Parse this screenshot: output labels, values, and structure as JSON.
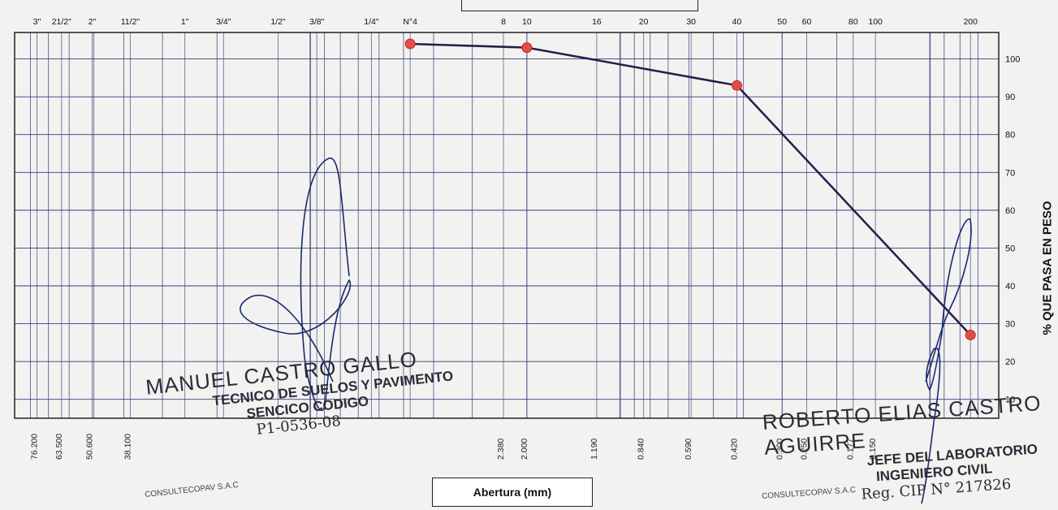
{
  "chart_data": {
    "type": "line",
    "x_scale": "log",
    "x_reversed": true,
    "xlim": [
      0.06,
      90
    ],
    "ylim": [
      5,
      107
    ],
    "grid": true,
    "series_color": "#2a1a4a",
    "marker_color": "#e84a4a",
    "sieve_labels": [
      {
        "label": "3\"",
        "mm": 76.2
      },
      {
        "label": "21/2\"",
        "mm": 63.5
      },
      {
        "label": "2\"",
        "mm": 50.6
      },
      {
        "label": "11/2\"",
        "mm": 38.1
      },
      {
        "label": "1\"",
        "mm": 25.4
      },
      {
        "label": "3/4\"",
        "mm": 19.05
      },
      {
        "label": "1/2\"",
        "mm": 12.7
      },
      {
        "label": "3/8\"",
        "mm": 9.525
      },
      {
        "label": "1/4\"",
        "mm": 6.35
      },
      {
        "label": "N°4",
        "mm": 4.76
      },
      {
        "label": "8",
        "mm": 2.38
      },
      {
        "label": "10",
        "mm": 2.0
      },
      {
        "label": "16",
        "mm": 1.19
      },
      {
        "label": "20",
        "mm": 0.84
      },
      {
        "label": "30",
        "mm": 0.59
      },
      {
        "label": "40",
        "mm": 0.42
      },
      {
        "label": "50",
        "mm": 0.3
      },
      {
        "label": "60",
        "mm": 0.25
      },
      {
        "label": "80",
        "mm": 0.177
      },
      {
        "label": "100",
        "mm": 0.15
      },
      {
        "label": "200",
        "mm": 0.074
      }
    ],
    "x_tick_labels": [
      {
        "text": "76.200",
        "mm": 76.2
      },
      {
        "text": "63.500",
        "mm": 63.5
      },
      {
        "text": "50.600",
        "mm": 50.6
      },
      {
        "text": "38.100",
        "mm": 38.1
      },
      {
        "text": "2.380",
        "mm": 2.38
      },
      {
        "text": "2.000",
        "mm": 2.0
      },
      {
        "text": "1.190",
        "mm": 1.19
      },
      {
        "text": "0.840",
        "mm": 0.84
      },
      {
        "text": "0.590",
        "mm": 0.59
      },
      {
        "text": "0.420",
        "mm": 0.42
      },
      {
        "text": "0.300",
        "mm": 0.3
      },
      {
        "text": "0.250",
        "mm": 0.25
      },
      {
        "text": "0.177",
        "mm": 0.177
      },
      {
        "text": "0.150",
        "mm": 0.15
      }
    ],
    "y_ticks": [
      10,
      20,
      30,
      40,
      50,
      60,
      70,
      80,
      90,
      100
    ],
    "series": [
      {
        "x": [
          4.76,
          2.0,
          0.42,
          0.074
        ],
        "y": [
          104,
          103,
          93,
          27
        ]
      }
    ],
    "xlabel": "Abertura (mm)",
    "ylabel": "% QUE PASA EN PESO"
  },
  "stamps": {
    "left": {
      "name": "MANUEL CASTRO GALLO",
      "line1": "TECNICO DE SUELOS Y PAVIMENTO",
      "line2": "SENCICO CODIGO",
      "line3": "P1-0536-08",
      "logo": "CONSULTECOPAV S.A.C"
    },
    "right": {
      "name": "ROBERTO ELIAS CASTRO AGUIRRE",
      "line1": "JEFE DEL LABORATORIO",
      "line2": "INGENIERO CIVIL",
      "line3": "Reg. CIP N° 217826",
      "logo": "CONSULTECOPAV S.A.C"
    }
  }
}
